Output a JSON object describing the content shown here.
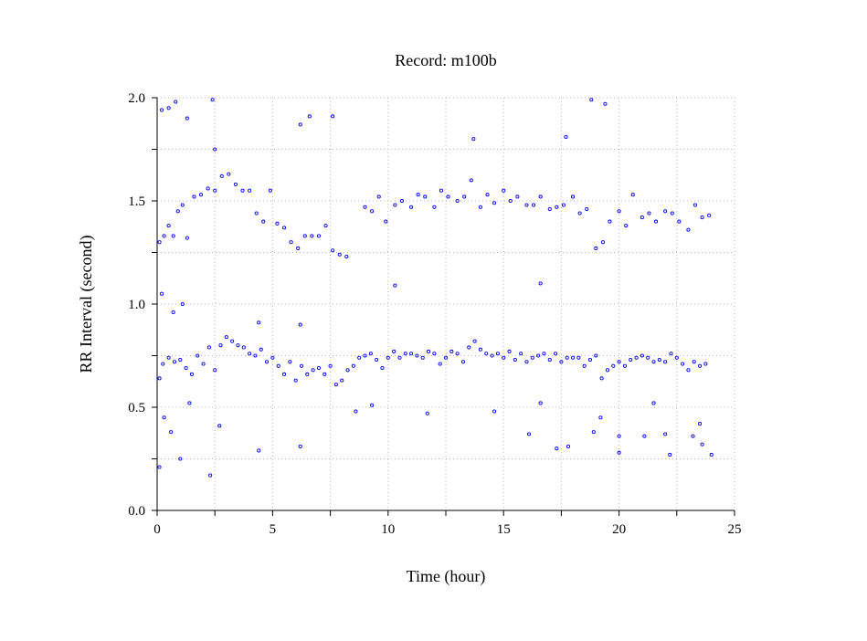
{
  "chart_data": {
    "type": "scatter",
    "title": "Record:  m100b",
    "xlabel": "Time (hour)",
    "ylabel": "RR Interval (second)",
    "xlim": [
      0,
      25
    ],
    "ylim": [
      0,
      2.0
    ],
    "x_ticks": [
      "0",
      "5",
      "10",
      "15",
      "20",
      "25"
    ],
    "y_ticks": [
      "0.0",
      "0.5",
      "1.0",
      "1.5",
      "2.0"
    ],
    "grid": true,
    "legend": "none",
    "marker": "open-circle",
    "color": "#0000ff",
    "series": [
      {
        "name": "",
        "x": [
          0.1,
          0.25,
          0.5,
          0.75,
          1.0,
          1.25,
          1.5,
          1.75,
          2.0,
          2.25,
          2.5,
          2.75,
          3.0,
          3.25,
          3.5,
          3.75,
          4.0,
          4.25,
          4.5,
          4.75,
          5.0,
          5.25,
          5.5,
          5.75,
          6.0,
          6.25,
          6.5,
          6.75,
          7.0,
          7.25,
          7.5,
          7.75,
          8.0,
          8.25,
          8.5,
          8.75,
          9.0,
          9.25,
          9.5,
          9.75,
          10.0,
          10.25,
          10.5,
          10.75,
          11.0,
          11.25,
          11.5,
          11.75,
          12.0,
          12.25,
          12.5,
          12.75,
          13.0,
          13.25,
          13.5,
          13.75,
          14.0,
          14.25,
          14.5,
          14.75,
          15.0,
          15.25,
          15.5,
          15.75,
          16.0,
          16.25,
          16.5,
          16.75,
          17.0,
          17.25,
          17.5,
          17.75,
          18.0,
          18.25,
          18.5,
          18.75,
          19.0,
          19.25,
          19.5,
          19.75,
          20.0,
          20.25,
          20.5,
          20.75,
          21.0,
          21.25,
          21.5,
          21.75,
          22.0,
          22.25,
          22.5,
          22.75,
          23.0,
          23.25,
          23.5,
          23.75,
          0.1,
          0.3,
          0.5,
          0.7,
          0.9,
          1.1,
          1.3,
          1.6,
          1.9,
          2.2,
          2.5,
          2.8,
          3.1,
          3.4,
          3.7,
          4.0,
          4.3,
          4.6,
          4.9,
          5.2,
          5.5,
          5.8,
          6.1,
          6.4,
          6.7,
          7.0,
          7.3,
          7.6,
          7.9,
          8.2,
          9.0,
          9.3,
          9.6,
          9.9,
          10.3,
          10.6,
          11.0,
          11.3,
          11.6,
          12.0,
          12.3,
          12.6,
          13.0,
          13.3,
          13.6,
          14.0,
          14.3,
          14.6,
          15.0,
          15.3,
          15.6,
          16.0,
          16.3,
          16.6,
          17.0,
          17.3,
          17.6,
          18.0,
          18.3,
          18.6,
          19.0,
          19.3,
          19.6,
          20.0,
          20.3,
          20.6,
          21.0,
          21.3,
          21.6,
          22.0,
          22.3,
          22.6,
          23.0,
          23.3,
          23.6,
          23.9,
          0.2,
          0.5,
          0.8,
          1.3,
          2.4,
          2.5,
          6.2,
          6.6,
          7.6,
          13.7,
          16.6,
          17.7,
          18.8,
          19.4,
          0.1,
          0.3,
          0.6,
          1.0,
          1.4,
          2.3,
          2.7,
          4.4,
          6.2,
          8.6,
          9.3,
          11.7,
          14.6,
          16.1,
          17.8,
          18.9,
          20.0,
          21.1,
          22.2,
          23.2,
          23.6,
          0.2,
          0.7,
          1.1,
          4.4,
          6.2,
          10.3,
          16.6,
          17.3,
          19.2,
          20.0,
          21.5,
          22.0,
          23.5,
          24.0
        ],
        "y": [
          0.64,
          0.71,
          0.74,
          0.72,
          0.73,
          0.69,
          0.66,
          0.75,
          0.71,
          0.79,
          0.68,
          0.8,
          0.84,
          0.82,
          0.8,
          0.79,
          0.76,
          0.75,
          0.78,
          0.72,
          0.74,
          0.7,
          0.66,
          0.72,
          0.63,
          0.7,
          0.66,
          0.68,
          0.69,
          0.66,
          0.7,
          0.61,
          0.63,
          0.68,
          0.7,
          0.74,
          0.75,
          0.76,
          0.73,
          0.69,
          0.74,
          0.77,
          0.74,
          0.76,
          0.76,
          0.75,
          0.74,
          0.77,
          0.76,
          0.71,
          0.74,
          0.77,
          0.76,
          0.72,
          0.79,
          0.82,
          0.78,
          0.76,
          0.75,
          0.76,
          0.74,
          0.77,
          0.73,
          0.76,
          0.72,
          0.74,
          0.75,
          0.76,
          0.73,
          0.76,
          0.72,
          0.74,
          0.74,
          0.74,
          0.7,
          0.73,
          0.75,
          0.64,
          0.68,
          0.7,
          0.72,
          0.7,
          0.73,
          0.74,
          0.75,
          0.74,
          0.72,
          0.73,
          0.72,
          0.76,
          0.74,
          0.71,
          0.68,
          0.72,
          0.7,
          0.71,
          1.3,
          1.33,
          1.38,
          1.33,
          1.45,
          1.48,
          1.32,
          1.52,
          1.53,
          1.56,
          1.55,
          1.62,
          1.63,
          1.58,
          1.55,
          1.55,
          1.44,
          1.4,
          1.55,
          1.39,
          1.37,
          1.3,
          1.27,
          1.33,
          1.33,
          1.33,
          1.38,
          1.26,
          1.24,
          1.23,
          1.47,
          1.45,
          1.52,
          1.4,
          1.48,
          1.5,
          1.47,
          1.53,
          1.52,
          1.47,
          1.55,
          1.52,
          1.5,
          1.52,
          1.6,
          1.47,
          1.53,
          1.49,
          1.55,
          1.5,
          1.52,
          1.48,
          1.48,
          1.52,
          1.46,
          1.47,
          1.48,
          1.52,
          1.44,
          1.46,
          1.27,
          1.3,
          1.4,
          1.45,
          1.38,
          1.53,
          1.42,
          1.44,
          1.4,
          1.45,
          1.44,
          1.4,
          1.36,
          1.48,
          1.42,
          1.43,
          1.94,
          1.95,
          1.98,
          1.9,
          1.99,
          1.75,
          1.87,
          1.91,
          1.91,
          1.8,
          1.1,
          1.81,
          1.99,
          1.97,
          0.21,
          0.45,
          0.38,
          0.25,
          0.52,
          0.17,
          0.41,
          0.29,
          0.31,
          0.48,
          0.51,
          0.47,
          0.48,
          0.37,
          0.31,
          0.38,
          0.28,
          0.36,
          0.27,
          0.36,
          0.32,
          1.05,
          0.96,
          1.0,
          0.91,
          0.9,
          1.09,
          0.52,
          0.3,
          0.45,
          0.36,
          0.52,
          0.37,
          0.42,
          0.27
        ]
      }
    ]
  }
}
